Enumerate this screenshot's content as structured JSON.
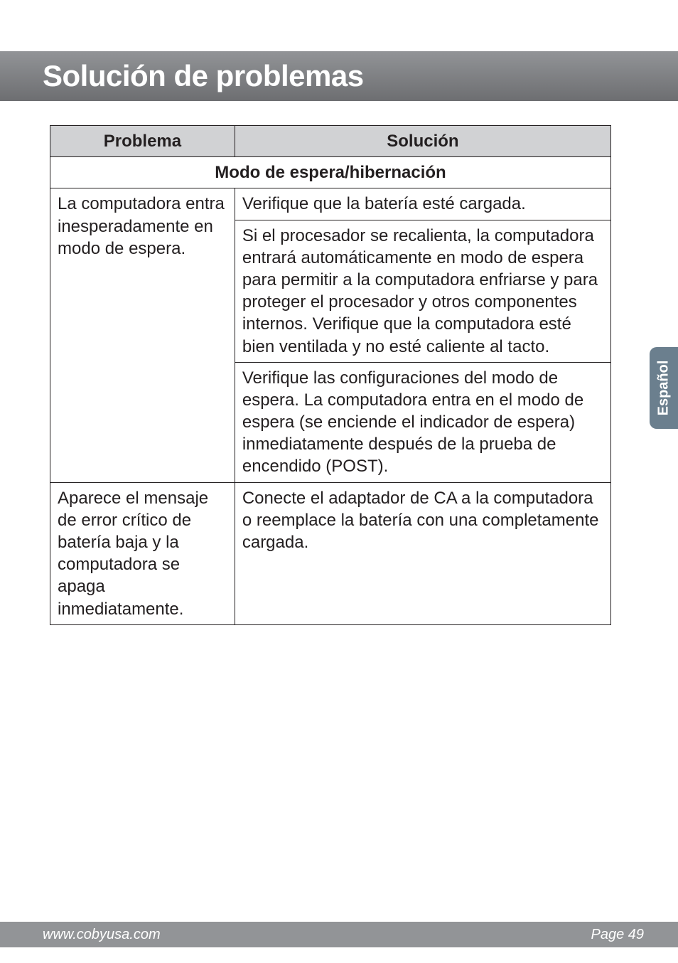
{
  "title": "Solución de problemas",
  "headers": {
    "problem": "Problema",
    "solution": "Solución"
  },
  "section": "Modo de espera/hibernación",
  "rows": [
    {
      "problem": "La computadora entra inesperadamente en modo de espera.",
      "solution": "Verifique que la batería esté cargada."
    },
    {
      "problem": "",
      "solution": "Si el procesador se recalienta, la computadora entrará automáticamente en modo de espera para permitir a la computadora enfriarse y para proteger el procesador y otros componentes internos. Verifique que la computadora esté bien ventilada y no esté caliente al tacto."
    },
    {
      "problem": "",
      "solution": "Verifique las configuraciones del modo de espera. La computa­dora entra en el modo de espera (se enciende el indicador de espera) inmediatamente después de la prueba de encendido (POST)."
    },
    {
      "problem": "Aparece el mensaje de error crítico de batería baja y la computadora se apaga inmediatamente.",
      "solution": "Conecte el adaptador de CA a la computadora o reemplace la batería con una completamente cargada."
    }
  ],
  "sideTab": "Español",
  "footer": {
    "left": "www.cobyusa.com",
    "right": "Page 49"
  }
}
